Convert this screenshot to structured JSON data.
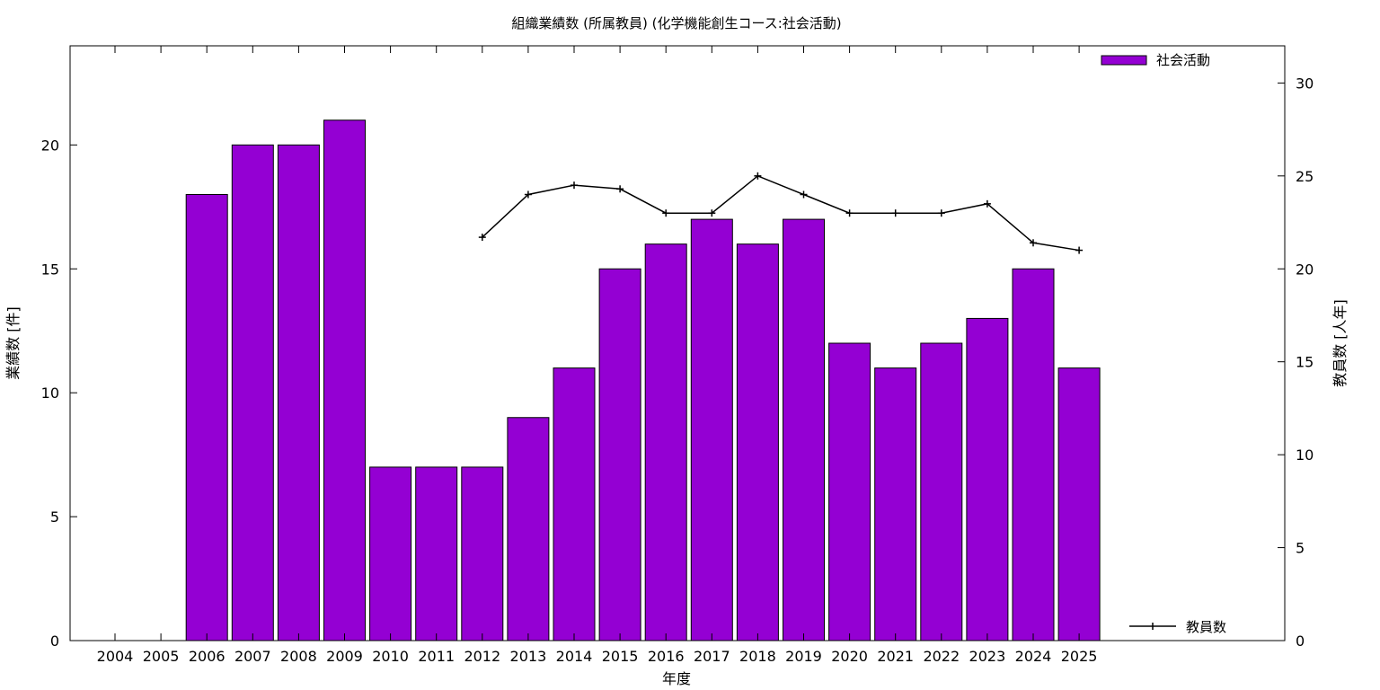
{
  "chart_data": {
    "type": "bar",
    "title": "組織業績数 (所属教員) (化学機能創生コース:社会活動)",
    "xlabel": "年度",
    "ylabel": "業績数 [件]",
    "y2label": "教員数 [人年]",
    "categories": [
      "2004",
      "2005",
      "2006",
      "2007",
      "2008",
      "2009",
      "2010",
      "2011",
      "2012",
      "2013",
      "2014",
      "2015",
      "2016",
      "2017",
      "2018",
      "2019",
      "2020",
      "2021",
      "2022",
      "2023",
      "2024",
      "2025"
    ],
    "ylim": [
      0,
      24
    ],
    "y2lim": [
      0,
      32
    ],
    "yticks": [
      0,
      5,
      10,
      15,
      20
    ],
    "y2ticks": [
      0,
      5,
      10,
      15,
      20,
      25,
      30
    ],
    "grid": false,
    "series": [
      {
        "name": "社会活動",
        "type": "bar",
        "axis": "left",
        "color": "#9400d3",
        "values": [
          0,
          0,
          18,
          20,
          20,
          21,
          7,
          7,
          7,
          9,
          11,
          15,
          16,
          17,
          16,
          17,
          12,
          11,
          12,
          13,
          15,
          11
        ]
      },
      {
        "name": "教員数",
        "type": "line",
        "axis": "right",
        "color": "#000000",
        "values": [
          null,
          null,
          null,
          null,
          null,
          null,
          null,
          null,
          21.7,
          24.0,
          24.5,
          24.3,
          23.0,
          23.0,
          25.0,
          24.0,
          23.0,
          23.0,
          23.0,
          23.5,
          21.4,
          21.0
        ]
      }
    ],
    "legend": [
      {
        "label": "社会活動",
        "placement": "top-right"
      },
      {
        "label": "教員数",
        "placement": "bottom-right"
      }
    ]
  }
}
